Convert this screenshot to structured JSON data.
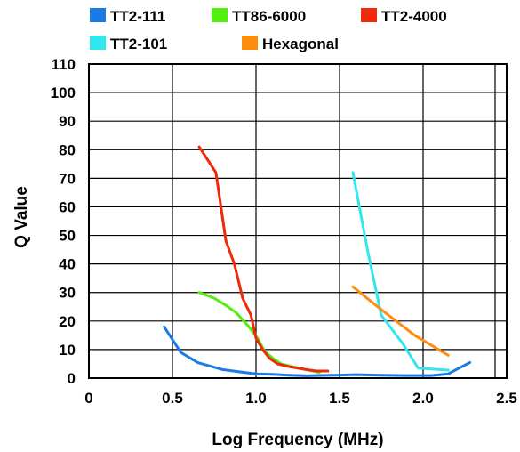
{
  "chart_data": {
    "type": "line",
    "xlabel": "Log Frequency (MHz)",
    "ylabel": "Q Value",
    "xlim": [
      0,
      2.5
    ],
    "ylim": [
      0,
      110
    ],
    "x_ticks": [
      "0",
      "0.5",
      "1.0",
      "1.5",
      "2.0",
      "2.5"
    ],
    "y_ticks": [
      "0",
      "10",
      "20",
      "30",
      "40",
      "50",
      "60",
      "70",
      "80",
      "90",
      "100",
      "110"
    ],
    "grid": true,
    "legend_position": "top",
    "series": [
      {
        "name": "TT2-111",
        "color": "#1a7be6",
        "points": [
          [
            0.45,
            18
          ],
          [
            0.55,
            9
          ],
          [
            0.65,
            5.5
          ],
          [
            0.8,
            3
          ],
          [
            0.9,
            2.2
          ],
          [
            1.0,
            1.5
          ],
          [
            1.1,
            1.3
          ],
          [
            1.2,
            1.0
          ],
          [
            1.3,
            0.8
          ],
          [
            1.45,
            1.0
          ],
          [
            1.6,
            1.2
          ],
          [
            1.75,
            1.0
          ],
          [
            1.9,
            0.9
          ],
          [
            2.05,
            0.9
          ],
          [
            2.15,
            1.5
          ],
          [
            2.28,
            5.5
          ]
        ]
      },
      {
        "name": "TT86-6000",
        "color": "#55ee11",
        "points": [
          [
            0.66,
            30
          ],
          [
            0.75,
            28
          ],
          [
            0.82,
            25.5
          ],
          [
            0.88,
            23
          ],
          [
            0.95,
            18.5
          ],
          [
            1.01,
            14
          ],
          [
            1.05,
            9.5
          ],
          [
            1.1,
            7
          ],
          [
            1.15,
            5
          ],
          [
            1.22,
            4
          ],
          [
            1.3,
            3
          ],
          [
            1.38,
            2
          ]
        ]
      },
      {
        "name": "TT2-4000",
        "color": "#ee2a0a",
        "points": [
          [
            0.66,
            81
          ],
          [
            0.76,
            72
          ],
          [
            0.82,
            48
          ],
          [
            0.87,
            40
          ],
          [
            0.92,
            28
          ],
          [
            0.97,
            22
          ],
          [
            1.0,
            14
          ],
          [
            1.04,
            10
          ],
          [
            1.08,
            7
          ],
          [
            1.13,
            5
          ],
          [
            1.2,
            4
          ],
          [
            1.3,
            3
          ],
          [
            1.36,
            2.5
          ],
          [
            1.43,
            2.5
          ]
        ]
      },
      {
        "name": "TT2-101",
        "color": "#33e6ee",
        "points": [
          [
            1.58,
            72
          ],
          [
            1.67,
            44
          ],
          [
            1.75,
            22
          ],
          [
            1.88,
            12
          ],
          [
            1.97,
            3.5
          ],
          [
            2.15,
            2.8
          ]
        ]
      },
      {
        "name": "Hexagonal",
        "color": "#ff8c10",
        "points": [
          [
            1.58,
            32
          ],
          [
            1.75,
            24
          ],
          [
            1.95,
            15
          ],
          [
            2.15,
            8
          ]
        ]
      }
    ]
  }
}
